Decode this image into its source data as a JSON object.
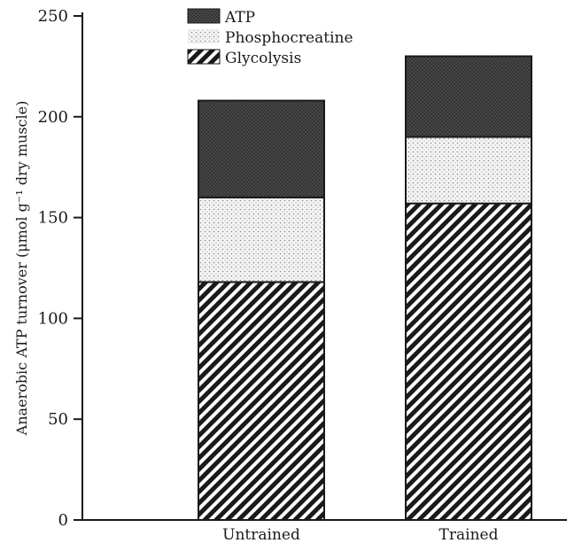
{
  "chart_data": {
    "type": "bar",
    "stacked": true,
    "categories": [
      "Untrained",
      "Trained"
    ],
    "series": [
      {
        "name": "Glycolysis",
        "values": [
          118,
          157
        ],
        "pattern": "diagonal-stripes",
        "color": "#1a1a1a"
      },
      {
        "name": "Phosphocreatine",
        "values": [
          42,
          33
        ],
        "pattern": "dots",
        "color": "#f2f2f2"
      },
      {
        "name": "ATP",
        "values": [
          48,
          40
        ],
        "pattern": "dense-hatch",
        "color": "#3a3a3a"
      }
    ],
    "legend_order": [
      "ATP",
      "Phosphocreatine",
      "Glycolysis"
    ],
    "ylabel": "Anaerobic ATP turnover (μmol g⁻¹ dry muscle)",
    "xlabel": "",
    "ylim": [
      0,
      250
    ],
    "yticks": [
      0,
      50,
      100,
      150,
      200,
      250
    ],
    "grid": false,
    "legend_position": "top-center"
  }
}
